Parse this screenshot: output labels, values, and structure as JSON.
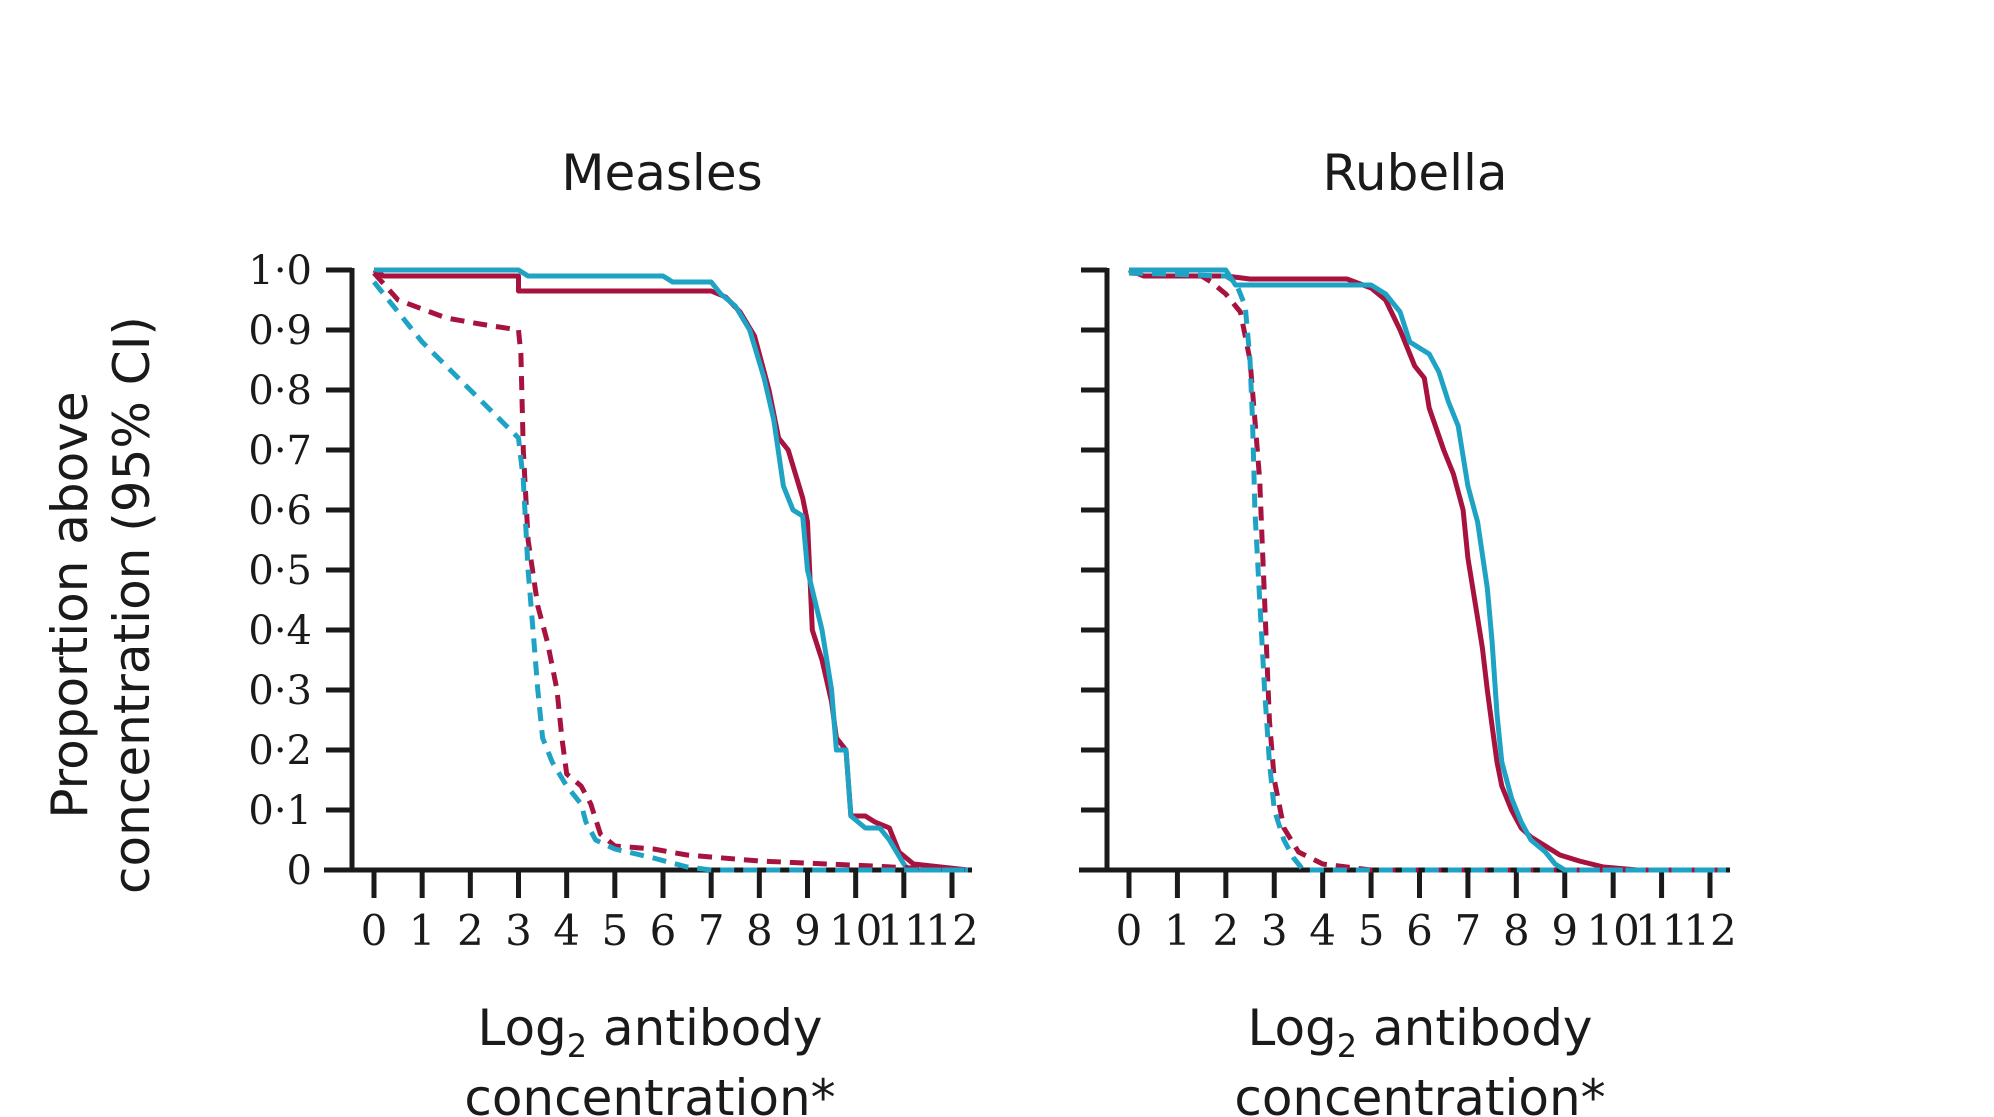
{
  "chart_data": {
    "type": "line",
    "ylabel_line1": "Proportion above",
    "ylabel_line2": "concentration (95% CI)",
    "yticks": [
      "1·0",
      "0·9",
      "0·8",
      "0·7",
      "0·6",
      "0·5",
      "0·4",
      "0·3",
      "0·2",
      "0·1",
      "0"
    ],
    "xticks": [
      "0",
      "1",
      "2",
      "3",
      "4",
      "5",
      "6",
      "7",
      "8",
      "9",
      "10",
      "11",
      "12"
    ],
    "xlabel_line1": "Log",
    "xlabel_sub": "2",
    "xlabel_line1_rest": " antibody",
    "xlabel_line2": "concentration*",
    "ylim": [
      0,
      1
    ],
    "xlim": [
      -0.5,
      12.5
    ],
    "colors": {
      "red": "#a8123e",
      "blue": "#1fa3c4"
    },
    "panels": [
      {
        "title": "Measles",
        "series": [
          {
            "color": "red",
            "style": "solid",
            "points": [
              [
                0,
                1.0
              ],
              [
                0.2,
                0.99
              ],
              [
                3.0,
                0.99
              ],
              [
                3.0,
                0.965
              ],
              [
                7.0,
                0.965
              ],
              [
                7.3,
                0.955
              ],
              [
                7.6,
                0.93
              ],
              [
                7.9,
                0.89
              ],
              [
                8.2,
                0.8
              ],
              [
                8.4,
                0.72
              ],
              [
                8.6,
                0.7
              ],
              [
                8.9,
                0.62
              ],
              [
                9.0,
                0.58
              ],
              [
                9.1,
                0.4
              ],
              [
                9.3,
                0.35
              ],
              [
                9.5,
                0.28
              ],
              [
                9.6,
                0.22
              ],
              [
                9.8,
                0.2
              ],
              [
                9.9,
                0.09
              ],
              [
                10.2,
                0.09
              ],
              [
                10.4,
                0.08
              ],
              [
                10.7,
                0.07
              ],
              [
                10.9,
                0.03
              ],
              [
                11.2,
                0.01
              ],
              [
                12.5,
                0.0
              ]
            ]
          },
          {
            "color": "blue",
            "style": "solid",
            "points": [
              [
                0,
                1.0
              ],
              [
                3.0,
                1.0
              ],
              [
                3.2,
                0.99
              ],
              [
                6.0,
                0.99
              ],
              [
                6.2,
                0.98
              ],
              [
                7.0,
                0.98
              ],
              [
                7.2,
                0.96
              ],
              [
                7.5,
                0.94
              ],
              [
                7.8,
                0.9
              ],
              [
                8.1,
                0.82
              ],
              [
                8.3,
                0.75
              ],
              [
                8.5,
                0.64
              ],
              [
                8.7,
                0.6
              ],
              [
                8.9,
                0.59
              ],
              [
                9.0,
                0.5
              ],
              [
                9.3,
                0.4
              ],
              [
                9.5,
                0.3
              ],
              [
                9.6,
                0.2
              ],
              [
                9.8,
                0.2
              ],
              [
                9.9,
                0.09
              ],
              [
                10.2,
                0.07
              ],
              [
                10.5,
                0.07
              ],
              [
                10.7,
                0.05
              ],
              [
                11.0,
                0.01
              ],
              [
                11.1,
                0.0
              ],
              [
                12.5,
                0.0
              ]
            ]
          },
          {
            "color": "red",
            "style": "dashed",
            "points": [
              [
                0,
                0.995
              ],
              [
                0.5,
                0.95
              ],
              [
                1.5,
                0.92
              ],
              [
                2.2,
                0.91
              ],
              [
                3.0,
                0.9
              ],
              [
                3.05,
                0.86
              ],
              [
                3.1,
                0.7
              ],
              [
                3.2,
                0.55
              ],
              [
                3.4,
                0.44
              ],
              [
                3.6,
                0.38
              ],
              [
                3.8,
                0.3
              ],
              [
                3.9,
                0.22
              ],
              [
                4.0,
                0.16
              ],
              [
                4.3,
                0.14
              ],
              [
                4.5,
                0.11
              ],
              [
                4.7,
                0.06
              ],
              [
                5.0,
                0.04
              ],
              [
                5.8,
                0.035
              ],
              [
                6.5,
                0.025
              ],
              [
                8.0,
                0.015
              ],
              [
                10.0,
                0.008
              ],
              [
                11.5,
                0.002
              ],
              [
                12.5,
                0.0
              ]
            ]
          },
          {
            "color": "blue",
            "style": "dashed",
            "points": [
              [
                0,
                0.98
              ],
              [
                1.0,
                0.88
              ],
              [
                2.0,
                0.8
              ],
              [
                3.0,
                0.72
              ],
              [
                3.1,
                0.65
              ],
              [
                3.2,
                0.5
              ],
              [
                3.3,
                0.4
              ],
              [
                3.4,
                0.3
              ],
              [
                3.5,
                0.22
              ],
              [
                3.7,
                0.18
              ],
              [
                4.0,
                0.14
              ],
              [
                4.3,
                0.11
              ],
              [
                4.4,
                0.08
              ],
              [
                4.6,
                0.05
              ],
              [
                5.0,
                0.035
              ],
              [
                5.8,
                0.02
              ],
              [
                6.5,
                0.005
              ],
              [
                7.0,
                0.0
              ],
              [
                12.5,
                0.0
              ]
            ]
          }
        ]
      },
      {
        "title": "Rubella",
        "series": [
          {
            "color": "red",
            "style": "solid",
            "points": [
              [
                0,
                1.0
              ],
              [
                0.3,
                0.99
              ],
              [
                2.0,
                0.99
              ],
              [
                2.5,
                0.985
              ],
              [
                4.5,
                0.985
              ],
              [
                5.0,
                0.97
              ],
              [
                5.3,
                0.95
              ],
              [
                5.6,
                0.9
              ],
              [
                5.9,
                0.84
              ],
              [
                6.1,
                0.82
              ],
              [
                6.2,
                0.77
              ],
              [
                6.5,
                0.7
              ],
              [
                6.7,
                0.66
              ],
              [
                6.9,
                0.6
              ],
              [
                7.0,
                0.52
              ],
              [
                7.2,
                0.42
              ],
              [
                7.3,
                0.37
              ],
              [
                7.4,
                0.3
              ],
              [
                7.5,
                0.24
              ],
              [
                7.6,
                0.18
              ],
              [
                7.7,
                0.14
              ],
              [
                7.9,
                0.1
              ],
              [
                8.1,
                0.07
              ],
              [
                8.3,
                0.055
              ],
              [
                8.6,
                0.04
              ],
              [
                8.9,
                0.025
              ],
              [
                9.3,
                0.015
              ],
              [
                9.8,
                0.005
              ],
              [
                10.5,
                0.0
              ],
              [
                12.5,
                0.0
              ]
            ]
          },
          {
            "color": "blue",
            "style": "solid",
            "points": [
              [
                0,
                1.0
              ],
              [
                2.0,
                1.0
              ],
              [
                2.2,
                0.975
              ],
              [
                5.0,
                0.975
              ],
              [
                5.3,
                0.96
              ],
              [
                5.6,
                0.93
              ],
              [
                5.8,
                0.88
              ],
              [
                6.2,
                0.86
              ],
              [
                6.4,
                0.83
              ],
              [
                6.6,
                0.78
              ],
              [
                6.8,
                0.74
              ],
              [
                7.0,
                0.64
              ],
              [
                7.2,
                0.58
              ],
              [
                7.4,
                0.47
              ],
              [
                7.5,
                0.38
              ],
              [
                7.6,
                0.26
              ],
              [
                7.7,
                0.18
              ],
              [
                7.9,
                0.12
              ],
              [
                8.1,
                0.08
              ],
              [
                8.3,
                0.05
              ],
              [
                8.6,
                0.03
              ],
              [
                8.8,
                0.01
              ],
              [
                9.0,
                0.0
              ],
              [
                12.5,
                0.0
              ]
            ]
          },
          {
            "color": "red",
            "style": "dashed",
            "points": [
              [
                0,
                0.995
              ],
              [
                1.5,
                0.99
              ],
              [
                1.7,
                0.98
              ],
              [
                2.0,
                0.96
              ],
              [
                2.3,
                0.93
              ],
              [
                2.5,
                0.85
              ],
              [
                2.6,
                0.75
              ],
              [
                2.7,
                0.65
              ],
              [
                2.75,
                0.55
              ],
              [
                2.8,
                0.45
              ],
              [
                2.85,
                0.35
              ],
              [
                2.9,
                0.25
              ],
              [
                3.0,
                0.15
              ],
              [
                3.2,
                0.07
              ],
              [
                3.5,
                0.03
              ],
              [
                4.0,
                0.01
              ],
              [
                5.0,
                0.0
              ],
              [
                12.5,
                0.0
              ]
            ]
          },
          {
            "color": "blue",
            "style": "dashed",
            "points": [
              [
                0,
                0.995
              ],
              [
                2.0,
                0.99
              ],
              [
                2.2,
                0.98
              ],
              [
                2.4,
                0.94
              ],
              [
                2.5,
                0.85
              ],
              [
                2.55,
                0.75
              ],
              [
                2.6,
                0.6
              ],
              [
                2.7,
                0.45
              ],
              [
                2.8,
                0.3
              ],
              [
                2.9,
                0.18
              ],
              [
                3.0,
                0.1
              ],
              [
                3.2,
                0.05
              ],
              [
                3.4,
                0.02
              ],
              [
                3.6,
                0.0
              ],
              [
                12.5,
                0.0
              ]
            ]
          }
        ]
      }
    ]
  }
}
